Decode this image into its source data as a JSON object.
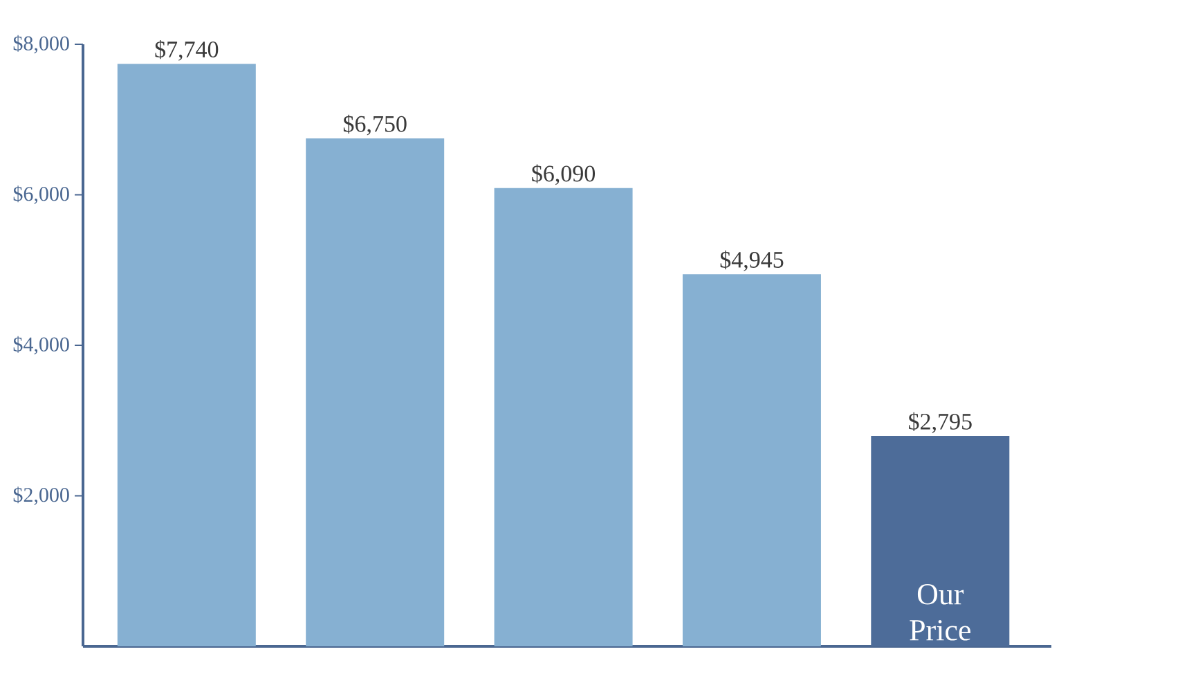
{
  "chart_data": {
    "type": "bar",
    "categories": [
      null,
      null,
      null,
      null,
      "Our Price"
    ],
    "values": [
      7740,
      6750,
      6090,
      4945,
      2795
    ],
    "colors": [
      "#86b0d2",
      "#86b0d2",
      "#86b0d2",
      "#86b0d2",
      "#4d6c99"
    ],
    "value_labels": [
      "$7,740",
      "$6,750",
      "$6,090",
      "$4,945",
      "$2,795"
    ],
    "ylim": [
      0,
      8000
    ],
    "yticks": [
      {
        "value": 2000,
        "label": "$2,000"
      },
      {
        "value": 4000,
        "label": "$4,000"
      },
      {
        "value": 6000,
        "label": "$6,000"
      },
      {
        "value": 8000,
        "label": "$8,000"
      }
    ],
    "grid": false
  }
}
